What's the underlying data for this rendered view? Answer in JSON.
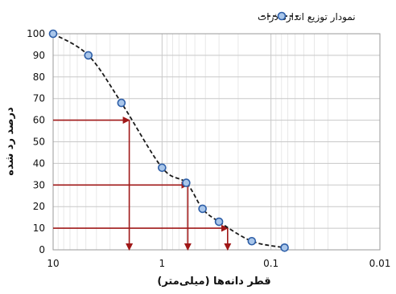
{
  "chart_data": {
    "type": "scatter",
    "legend": {
      "position": "top-center",
      "entries": [
        {
          "label": "نمودار توزیع اندازه ذرات"
        }
      ]
    },
    "xlabel": "قطر دانه‌ها (میلی‌متر)",
    "ylabel": "درصد رد شده",
    "x_scale": "log",
    "x_reversed": true,
    "xlim": [
      10,
      0.01
    ],
    "ylim": [
      0,
      100
    ],
    "grid": true,
    "x_ticks": [
      "10",
      "1",
      "0.1",
      "0.01"
    ],
    "y_ticks": [
      "0",
      "10",
      "20",
      "30",
      "40",
      "50",
      "60",
      "70",
      "80",
      "90",
      "100"
    ],
    "series": [
      {
        "name": "نمودار توزیع اندازه ذرات",
        "style": "dashed line with circle markers",
        "points": [
          {
            "x": 10,
            "y": 100
          },
          {
            "x": 4.75,
            "y": 90
          },
          {
            "x": 2.36,
            "y": 68
          },
          {
            "x": 1.0,
            "y": 38
          },
          {
            "x": 0.6,
            "y": 31
          },
          {
            "x": 0.425,
            "y": 19
          },
          {
            "x": 0.3,
            "y": 13
          },
          {
            "x": 0.15,
            "y": 4
          },
          {
            "x": 0.075,
            "y": 1
          }
        ]
      }
    ],
    "reference_lines": [
      {
        "y_percent": 60,
        "x": 2.0
      },
      {
        "y_percent": 30,
        "x": 0.58
      },
      {
        "y_percent": 10,
        "x": 0.25
      }
    ],
    "colors": {
      "series_line": "#1a1a1a",
      "marker_fill": "#a9c6ea",
      "marker_stroke": "#2e5fa8",
      "reference_arrow": "#a01818",
      "grid_major": "#c8c8c8",
      "grid_minor": "#e3e3e3"
    }
  }
}
